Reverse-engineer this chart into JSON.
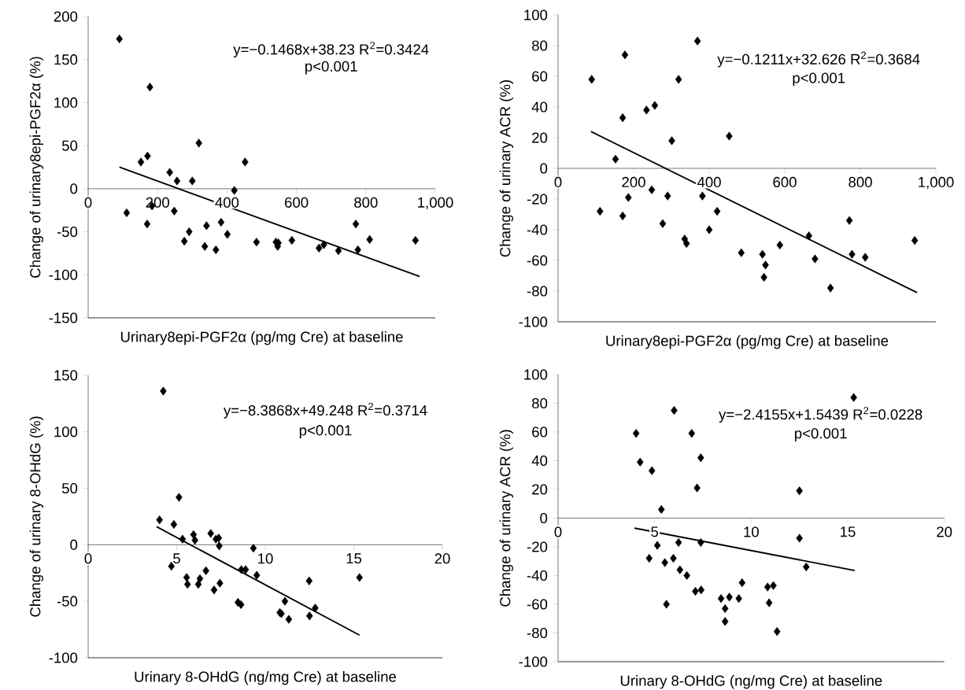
{
  "chart_data": [
    {
      "type": "scatter",
      "xlabel": "Urinary8epi-PGF2α (pg/mg Cre) at baseline",
      "ylabel": "Change of urinary8epi-PGF2α (%)",
      "annotations": [
        "y=−0.1468x+38.23  R$^{2}$=0.3424",
        "p<0.001"
      ],
      "xlim": [
        0,
        1000
      ],
      "xticks": [
        0,
        200,
        400,
        600,
        800,
        {
          "value": 1000,
          "label": "1,000"
        }
      ],
      "ylim": [
        -150,
        200
      ],
      "yticks": [
        -150,
        -100,
        -50,
        0,
        50,
        100,
        150,
        200
      ],
      "series": [
        {
          "color": "#000000",
          "marker": "diamond",
          "x": [
            90,
            111,
            152,
            171,
            178,
            170,
            184,
            235,
            248,
            256,
            277,
            291,
            300,
            319,
            336,
            341,
            368,
            383,
            401,
            421,
            452,
            485,
            541,
            546,
            548,
            587,
            665,
            679,
            721,
            771,
            777,
            811,
            943
          ],
          "values": [
            174,
            -28,
            31,
            38,
            118,
            -41,
            -20,
            19,
            -26,
            9,
            -61,
            -50,
            9,
            53,
            -67,
            -43,
            -71,
            -39,
            -53,
            -2,
            31,
            -62,
            -62,
            -67,
            -63,
            -60,
            -69,
            -65,
            -72,
            -41,
            -71,
            -59,
            -60
          ]
        },
        {
          "type": "line",
          "color": "#000000",
          "x": [
            90,
            955
          ],
          "values": [
            25,
            -102
          ]
        }
      ]
    },
    {
      "type": "scatter",
      "xlabel": "Urinary8epi-PGF2α (pg/mg Cre) at baseline",
      "ylabel": "Change of urinary ACR (%)",
      "annotations": [
        "y=−0.1211x+32.626  R$^{2}$=0.3684",
        "p<0.001"
      ],
      "xlim": [
        0,
        1000
      ],
      "xticks": [
        0,
        200,
        400,
        600,
        800,
        {
          "value": 1000,
          "label": "1,000"
        }
      ],
      "ylim": [
        -100,
        100
      ],
      "yticks": [
        -100,
        -80,
        -60,
        -40,
        -20,
        0,
        20,
        40,
        60,
        80,
        100
      ],
      "series": [
        {
          "color": "#000000",
          "marker": "diamond",
          "x": [
            89,
            111,
            152,
            171,
            171,
            177,
            186,
            234,
            248,
            256,
            277,
            290,
            301,
            319,
            335,
            340,
            369,
            382,
            400,
            421,
            453,
            485,
            541,
            549,
            545,
            587,
            664,
            680,
            721,
            771,
            778,
            813,
            944
          ],
          "values": [
            58,
            -28,
            6,
            33,
            -31,
            74,
            -19,
            38,
            -14,
            41,
            -36,
            -18,
            18,
            58,
            -46,
            -49,
            83,
            -18,
            -40,
            -28,
            21,
            -55,
            -56,
            -63,
            -71,
            -50,
            -44,
            -59,
            -78,
            -34,
            -56,
            -58,
            -47
          ]
        },
        {
          "type": "line",
          "color": "#000000",
          "x": [
            87,
            950
          ],
          "values": [
            24,
            -81
          ]
        }
      ]
    },
    {
      "type": "scatter",
      "xlabel": "Urinary 8-OHdG (ng/mg Cre) at baseline",
      "ylabel": "Change of urinary 8-OHdG (%)",
      "annotations": [
        "y=−8.3868x+49.248  R$^{2}$=0.3714",
        "p<0.001"
      ],
      "xlim": [
        0,
        20
      ],
      "xticks": [
        0,
        5,
        10,
        15,
        20
      ],
      "ylim": [
        -100,
        150
      ],
      "yticks": [
        -100,
        -50,
        0,
        50,
        100,
        150
      ],
      "series": [
        {
          "color": "#000000",
          "marker": "diamond",
          "x": [
            4.24,
            4.03,
            4.84,
            5.13,
            4.7,
            5.33,
            5.56,
            5.61,
            5.95,
            6.03,
            6.22,
            6.31,
            6.65,
            6.92,
            7.11,
            7.21,
            7.37,
            7.4,
            7.44,
            8.46,
            8.63,
            8.65,
            8.89,
            9.33,
            9.52,
            10.82,
            10.91,
            11.11,
            11.33,
            12.48,
            12.5,
            12.82,
            15.32
          ],
          "values": [
            136,
            22,
            18,
            42,
            -19,
            5,
            -29,
            -35,
            9,
            4,
            -35,
            -30,
            -23,
            10,
            -40,
            5,
            6,
            -1,
            -34,
            -51,
            -53,
            -22,
            -22,
            -3,
            -27,
            -60,
            -61,
            -50,
            -66,
            -32,
            -63,
            -56,
            -29
          ]
        },
        {
          "type": "line",
          "color": "#000000",
          "x": [
            3.86,
            15.32
          ],
          "values": [
            16,
            -80
          ]
        }
      ]
    },
    {
      "type": "scatter",
      "xlabel": "Urinary 8-OHdG (ng/mg Cre) at baseline",
      "ylabel": "Change of urinary ACR (%)",
      "annotations": [
        "y=−2.4155x+1.5439  R$^{2}$=0.0228",
        "p<0.001"
      ],
      "xlim": [
        0,
        20
      ],
      "xticks": [
        0,
        5,
        10,
        15,
        20
      ],
      "ylim": [
        -100,
        100
      ],
      "yticks": [
        -100,
        -80,
        -60,
        -40,
        -20,
        0,
        20,
        40,
        60,
        80,
        100
      ],
      "series": [
        {
          "color": "#000000",
          "marker": "diamond",
          "x": [
            4.04,
            4.25,
            4.86,
            5.35,
            4.72,
            5.14,
            5.53,
            5.61,
            6.01,
            5.97,
            6.24,
            6.31,
            6.67,
            6.92,
            7.11,
            7.2,
            7.39,
            7.41,
            7.39,
            8.44,
            8.65,
            8.65,
            8.87,
            9.36,
            9.53,
            10.85,
            10.93,
            11.15,
            11.34,
            12.5,
            12.5,
            12.85,
            15.31
          ],
          "values": [
            59,
            39,
            33,
            6,
            -28,
            -19,
            -31,
            -60,
            75,
            -28,
            -17,
            -36,
            -40,
            59,
            -51,
            21,
            42,
            -50,
            -17,
            -56,
            -63,
            -72,
            -55,
            -56,
            -45,
            -48,
            -59,
            -47,
            -79,
            19,
            -14,
            -34,
            84
          ]
        },
        {
          "type": "line",
          "color": "#000000",
          "x": [
            3.96,
            15.36
          ],
          "values": [
            -7,
            -36.5
          ]
        }
      ]
    }
  ]
}
